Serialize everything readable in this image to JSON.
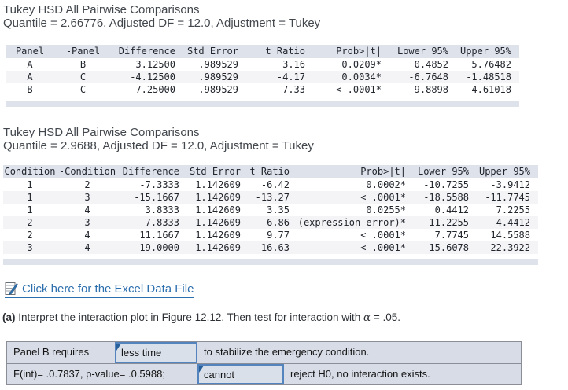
{
  "colors": {
    "table_band": "#dee2ea",
    "alt_row": "#f4f4f6",
    "link_blue": "#2c6fad",
    "dropdown_border_blue": "#5484bd",
    "answer_table_bg": "#d8dce6"
  },
  "section1": {
    "title": "Tukey HSD All Pairwise Comparisons",
    "subtitle": "Quantile = 2.66776, Adjusted DF = 12.0, Adjustment = Tukey",
    "table": {
      "columns": [
        "Panel",
        "-Panel",
        "Difference",
        "Std Error",
        "t Ratio",
        "Prob>|t|",
        "Lower 95%",
        "Upper 95%"
      ],
      "rows": [
        [
          "A",
          "B",
          "3.12500",
          ".989529",
          "3.16",
          "0.0209*",
          "0.4852",
          "5.76482"
        ],
        [
          "A",
          "C",
          "-4.12500",
          ".989529",
          "-4.17",
          "0.0034*",
          "-6.7648",
          "-1.48518"
        ],
        [
          "B",
          "C",
          "-7.25000",
          ".989529",
          "-7.33",
          "< .0001*",
          "-9.8898",
          "-4.61018"
        ]
      ]
    }
  },
  "section2": {
    "title": "Tukey HSD All Pairwise Comparisons",
    "subtitle": "Quantile = 2.9688, Adjusted DF = 12.0, Adjustment = Tukey",
    "table": {
      "columns": [
        "Condition",
        "-Condition",
        "Difference",
        "Std Error",
        "t Ratio",
        "Prob>|t|",
        "Lower 95%",
        "Upper 95%"
      ],
      "rows": [
        [
          "1",
          "2",
          "-7.3333",
          "1.142609",
          "-6.42",
          "0.0002*",
          "-10.7255",
          "-3.9412"
        ],
        [
          "1",
          "3",
          "-15.1667",
          "1.142609",
          "-13.27",
          "< .0001*",
          "-18.5588",
          "-11.7745"
        ],
        [
          "1",
          "4",
          "3.8333",
          "1.142609",
          "3.35",
          "0.0255*",
          "0.4412",
          "7.2255"
        ],
        [
          "2",
          "3",
          "-7.8333",
          "1.142609",
          "-6.86",
          "(expression error)*",
          "-11.2255",
          "-4.4412"
        ],
        [
          "2",
          "4",
          "11.1667",
          "1.142609",
          "9.77",
          "< .0001*",
          "7.7745",
          "14.5588"
        ],
        [
          "3",
          "4",
          "19.0000",
          "1.142609",
          "16.63",
          "< .0001*",
          "15.6078",
          "22.3922"
        ]
      ]
    }
  },
  "excel_link": {
    "label": "Click here for the Excel Data File",
    "icon": "excel-file-icon"
  },
  "question": {
    "part_label": "(a)",
    "before_alpha": " Interpret the interaction plot in Figure 12.12. Then test for interaction with ",
    "alpha": "α",
    "after_alpha": " = .05."
  },
  "answer_table": {
    "rows": [
      {
        "prefix": "Panel B requires",
        "dropdown_value": "less time",
        "suffix": "to stabilize the emergency condition."
      },
      {
        "prefix": "F(int)= .0.7837, p-value= .0.5988;",
        "dropdown_value": "cannot",
        "suffix": "reject H0, no interaction exists."
      }
    ]
  }
}
